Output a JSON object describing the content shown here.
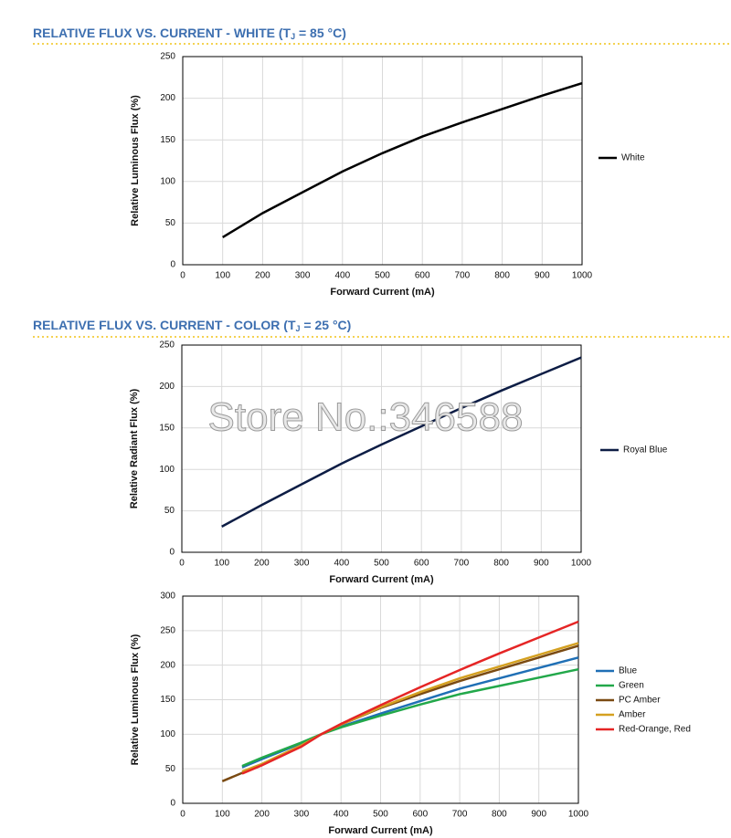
{
  "sections": [
    {
      "title_parts": [
        "RELATIVE FLUX VS. CURRENT - WHITE (T",
        "J",
        " = 85 °C)"
      ]
    },
    {
      "title_parts": [
        "RELATIVE FLUX VS. CURRENT - COLOR (T",
        "J",
        " = 25 °C)"
      ]
    }
  ],
  "watermark": "Store No.:346588",
  "chart_data": [
    {
      "type": "line",
      "x_label": "Forward Current (mA)",
      "y_label": "Relative Luminous Flux (%)",
      "xlim": [
        0,
        1000
      ],
      "xticks": [
        0,
        100,
        200,
        300,
        400,
        500,
        600,
        700,
        800,
        900,
        1000
      ],
      "ylim": [
        0,
        250
      ],
      "yticks": [
        0,
        50,
        100,
        150,
        200,
        250
      ],
      "grid": true,
      "legend": "right",
      "series": [
        {
          "name": "White",
          "color": "#000000",
          "x": [
            100,
            200,
            300,
            400,
            500,
            600,
            700,
            800,
            900,
            1000
          ],
          "values": [
            33,
            62,
            87,
            112,
            134,
            154,
            171,
            187,
            203,
            218
          ]
        }
      ]
    },
    {
      "type": "line",
      "x_label": "Forward Current (mA)",
      "y_label": "Relative Radiant Flux (%)",
      "xlim": [
        0,
        1000
      ],
      "xticks": [
        0,
        100,
        200,
        300,
        400,
        500,
        600,
        700,
        800,
        900,
        1000
      ],
      "ylim": [
        0,
        250
      ],
      "yticks": [
        0,
        50,
        100,
        150,
        200,
        250
      ],
      "grid": true,
      "legend": "right",
      "series": [
        {
          "name": "Royal Blue",
          "color": "#0d1d45",
          "x": [
            100,
            200,
            300,
            400,
            500,
            600,
            700,
            800,
            900,
            1000
          ],
          "values": [
            31,
            57,
            82,
            107,
            130,
            152,
            174,
            195,
            215,
            235
          ]
        }
      ]
    },
    {
      "type": "line",
      "x_label": "Forward Current (mA)",
      "y_label": "Relative Luminous Flux (%)",
      "xlim": [
        0,
        1000
      ],
      "xticks": [
        0,
        100,
        200,
        300,
        400,
        500,
        600,
        700,
        800,
        900,
        1000
      ],
      "ylim": [
        0,
        300
      ],
      "yticks": [
        0,
        50,
        100,
        150,
        200,
        250,
        300
      ],
      "grid": true,
      "legend": "right",
      "series": [
        {
          "name": "Blue",
          "color": "#1f6fb5",
          "x": [
            150,
            200,
            300,
            350,
            400,
            500,
            600,
            700,
            800,
            900,
            1000
          ],
          "values": [
            52,
            64,
            87,
            100,
            111,
            130,
            148,
            166,
            181,
            196,
            211
          ]
        },
        {
          "name": "Green",
          "color": "#22a84a",
          "x": [
            150,
            200,
            300,
            350,
            400,
            500,
            600,
            700,
            800,
            900,
            1000
          ],
          "values": [
            54,
            66,
            88,
            100,
            110,
            127,
            143,
            158,
            170,
            182,
            194
          ]
        },
        {
          "name": "PC Amber",
          "color": "#7a4a12",
          "x": [
            100,
            200,
            300,
            350,
            400,
            500,
            600,
            700,
            800,
            900,
            1000
          ],
          "values": [
            32,
            56,
            83,
            100,
            114,
            138,
            158,
            177,
            194,
            211,
            228
          ]
        },
        {
          "name": "Amber",
          "color": "#d4a020",
          "x": [
            150,
            200,
            300,
            350,
            400,
            500,
            600,
            700,
            800,
            900,
            1000
          ],
          "values": [
            46,
            57,
            84,
            100,
            114,
            139,
            161,
            181,
            198,
            215,
            232
          ]
        },
        {
          "name": "Red-Orange, Red",
          "color": "#e52525",
          "x": [
            150,
            200,
            300,
            350,
            400,
            500,
            600,
            700,
            800,
            900,
            1000
          ],
          "values": [
            43,
            55,
            82,
            100,
            115,
            142,
            168,
            193,
            217,
            240,
            263
          ]
        }
      ]
    }
  ]
}
